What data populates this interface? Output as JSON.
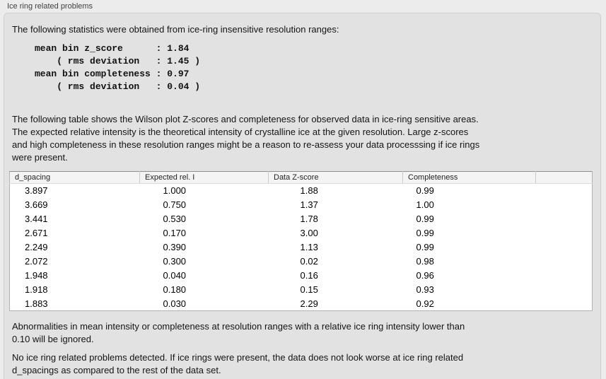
{
  "panel": {
    "title": "Ice ring related problems"
  },
  "intro": {
    "text": "The following statistics were obtained from ice-ring insensitive resolution ranges:"
  },
  "stats_block": {
    "text": "mean bin z_score      : 1.84\n    ( rms deviation   : 1.45 )\nmean bin completeness : 0.97\n    ( rms deviation   : 0.04 )"
  },
  "description": {
    "text": "The following table shows the Wilson plot Z-scores and completeness for observed data in ice-ring sensitive areas.\nThe expected relative intensity is the theoretical intensity of crystalline ice at the given resolution. Large z-scores\nand high completeness in these resolution ranges might be a reason to re-assess your data processsing if ice rings\nwere present."
  },
  "table": {
    "columns": [
      "d_spacing",
      "Expected rel. I",
      "Data Z-score",
      "Completeness",
      ""
    ],
    "column_keys": [
      "d-spacing",
      "expected-rel-i",
      "data-z-score",
      "completeness",
      "spacer"
    ],
    "rows": [
      [
        "3.897",
        "1.000",
        "1.88",
        "0.99"
      ],
      [
        "3.669",
        "0.750",
        "1.37",
        "1.00"
      ],
      [
        "3.441",
        "0.530",
        "1.78",
        "0.99"
      ],
      [
        "2.671",
        "0.170",
        "3.00",
        "0.99"
      ],
      [
        "2.249",
        "0.390",
        "1.13",
        "0.99"
      ],
      [
        "2.072",
        "0.300",
        "0.02",
        "0.98"
      ],
      [
        "1.948",
        "0.040",
        "0.16",
        "0.96"
      ],
      [
        "1.918",
        "0.180",
        "0.15",
        "0.93"
      ],
      [
        "1.883",
        "0.030",
        "2.29",
        "0.92"
      ]
    ]
  },
  "footnotes": {
    "ignore_rule": "Abnormalities in mean intensity or completeness at resolution ranges with a relative ice ring intensity lower than\n0.10 will be ignored.",
    "conclusion": "No ice ring related problems detected. If ice rings were present, the data does not look worse at ice ring related\nd_spacings as compared to the rest of the data set."
  },
  "colors": {
    "page_background": "#ececec",
    "groupbox_background": "#e2e2e2",
    "table_header_background": "#f4f4f4",
    "table_body_background": "#ffffff"
  }
}
